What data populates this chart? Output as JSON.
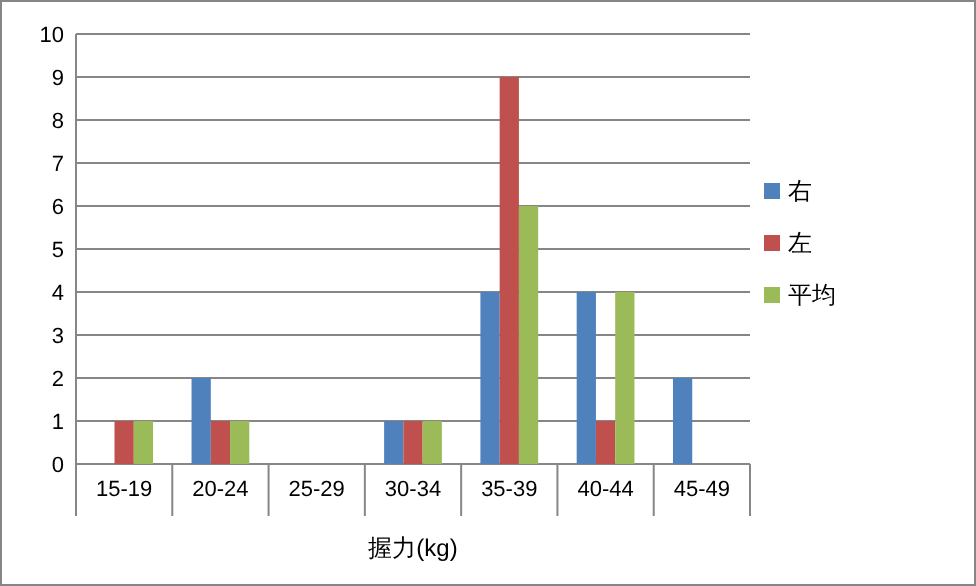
{
  "chart_data": {
    "type": "bar",
    "xlabel": "握力(kg)",
    "categories": [
      "15-19",
      "20-24",
      "25-29",
      "30-34",
      "35-39",
      "40-44",
      "45-49"
    ],
    "series": [
      {
        "name": "右",
        "color": "#4f81bd",
        "values": [
          null,
          2,
          null,
          1,
          4,
          4,
          2
        ]
      },
      {
        "name": "左",
        "color": "#c0504d",
        "values": [
          1,
          1,
          null,
          1,
          9,
          1,
          null
        ]
      },
      {
        "name": "平均",
        "color": "#9bbb59",
        "values": [
          1,
          1,
          null,
          1,
          6,
          4,
          null
        ]
      }
    ],
    "ylim": [
      0,
      10
    ],
    "yticks": [
      0,
      1,
      2,
      3,
      4,
      5,
      6,
      7,
      8,
      9,
      10
    ],
    "grid": "y",
    "legend": "right"
  }
}
